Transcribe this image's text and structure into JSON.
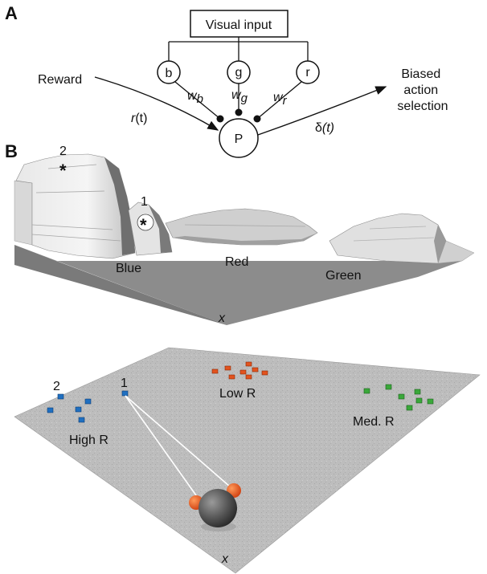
{
  "panel_a": {
    "label": "A",
    "visual_input": "Visual input",
    "nodes": {
      "b": "b",
      "g": "g",
      "r": "r",
      "p": "P"
    },
    "weights": {
      "b": {
        "base": "w",
        "sub": "b"
      },
      "g": {
        "base": "w",
        "sub": "g"
      },
      "r": {
        "base": "w",
        "sub": "r"
      }
    },
    "reward": "Reward",
    "reward_signal": {
      "base": "r",
      "arg": "(t)"
    },
    "delta_signal": {
      "base": "δ",
      "arg": "(t)"
    },
    "output": [
      "Biased",
      "action",
      "selection"
    ]
  },
  "panel_b": {
    "label": "B",
    "landscape": {
      "peak2_label": "2",
      "peak1_label": "1",
      "marker": "*",
      "regions": {
        "blue": "Blue",
        "red": "Red",
        "green": "Green"
      },
      "axis": "x"
    },
    "arena": {
      "flower1_label": "1",
      "flower2_label": "2",
      "groups": {
        "high": "High R",
        "low": "Low R",
        "med": "Med. R"
      },
      "axis": "x"
    }
  },
  "colors": {
    "blue_flower": "#1f6fc0",
    "red_flower": "#e2531e",
    "green_flower": "#3aa83a",
    "floor": "#b9b9b9",
    "landscape_floor": "#8c8c8c",
    "bee_body": "#505050"
  }
}
